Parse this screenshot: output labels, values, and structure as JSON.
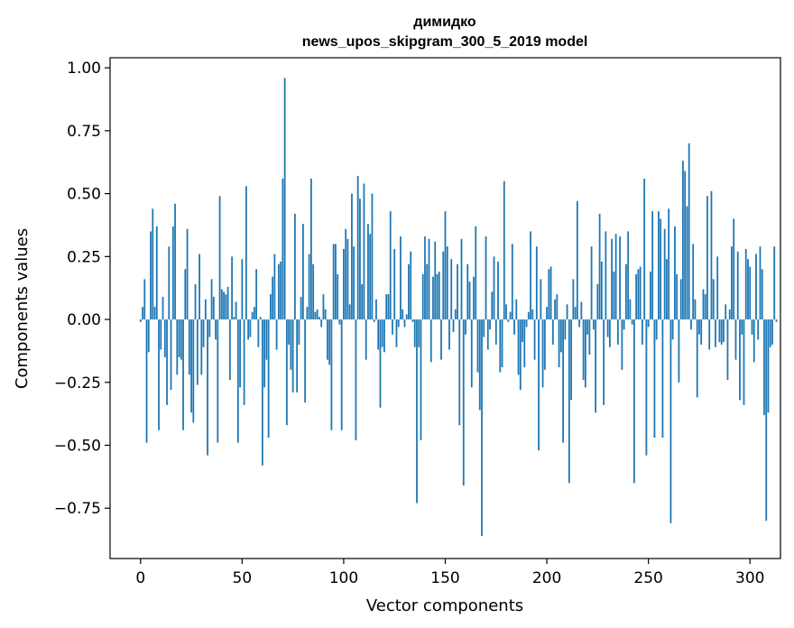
{
  "chart_data": {
    "type": "bar",
    "title": "димидко",
    "subtitle": "news_upos_skipgram_300_5_2019 model",
    "xlabel": "Vector components",
    "ylabel": "Components values",
    "xlim": [
      -15,
      315
    ],
    "ylim": [
      -0.95,
      1.04
    ],
    "xticks": [
      0,
      50,
      100,
      150,
      200,
      250,
      300
    ],
    "xtick_labels": [
      "0",
      "50",
      "100",
      "150",
      "200",
      "250",
      "300"
    ],
    "yticks": [
      1.0,
      0.75,
      0.5,
      0.25,
      0.0,
      -0.25,
      -0.5,
      -0.75
    ],
    "ytick_labels": [
      "1.00",
      "0.75",
      "0.50",
      "0.25",
      "0.00",
      "−0.25",
      "−0.50",
      "−0.75"
    ],
    "bar_color": "#1f77b4",
    "grid": false,
    "legend": false,
    "series": [
      {
        "values": [
          -0.01,
          0.05,
          0.16,
          -0.49,
          -0.13,
          0.35,
          0.44,
          0.05,
          0.37,
          -0.44,
          -0.12,
          0.09,
          -0.15,
          -0.34,
          0.29,
          -0.28,
          0.37,
          0.46,
          -0.22,
          -0.15,
          -0.16,
          -0.44,
          0.2,
          0.36,
          -0.22,
          -0.37,
          -0.41,
          0.14,
          -0.26,
          0.26,
          -0.22,
          -0.11,
          0.08,
          -0.54,
          -0.07,
          0.16,
          0.09,
          -0.08,
          -0.49,
          0.49,
          0.12,
          0.11,
          0.1,
          0.13,
          -0.24,
          0.25,
          0.01,
          0.07,
          -0.49,
          -0.27,
          0.24,
          -0.34,
          0.53,
          -0.08,
          -0.07,
          0.03,
          0.05,
          0.2,
          -0.11,
          0.01,
          -0.58,
          -0.27,
          -0.16,
          -0.47,
          0.1,
          0.17,
          0.26,
          -0.12,
          0.22,
          0.23,
          0.56,
          0.96,
          -0.42,
          -0.1,
          -0.2,
          -0.29,
          0.42,
          -0.29,
          -0.1,
          0.09,
          0.38,
          -0.33,
          0.05,
          0.26,
          0.56,
          0.22,
          0.03,
          0.04,
          0.01,
          -0.03,
          0.1,
          0.04,
          -0.16,
          -0.18,
          -0.44,
          0.3,
          0.3,
          0.18,
          -0.02,
          -0.44,
          0.28,
          0.36,
          0.32,
          0.06,
          0.5,
          0.29,
          -0.48,
          0.57,
          0.48,
          0.14,
          0.54,
          -0.16,
          0.38,
          0.34,
          0.5,
          -0.01,
          0.08,
          -0.12,
          -0.35,
          -0.11,
          -0.13,
          0.1,
          0.1,
          0.43,
          -0.06,
          0.28,
          -0.11,
          -0.03,
          0.33,
          0.04,
          -0.03,
          0.02,
          0.22,
          0.27,
          -0.01,
          -0.11,
          -0.73,
          -0.11,
          -0.48,
          0.18,
          0.33,
          0.22,
          0.32,
          -0.17,
          0.17,
          0.31,
          0.18,
          0.19,
          -0.16,
          0.27,
          0.43,
          0.29,
          -0.12,
          0.24,
          -0.05,
          0.04,
          0.22,
          -0.42,
          0.32,
          -0.66,
          -0.06,
          0.22,
          0.15,
          -0.27,
          0.17,
          0.37,
          -0.21,
          -0.36,
          -0.86,
          -0.07,
          0.33,
          -0.12,
          -0.04,
          0.11,
          0.25,
          -0.1,
          0.23,
          -0.21,
          -0.19,
          0.55,
          0.06,
          -0.01,
          0.03,
          0.3,
          -0.06,
          0.08,
          -0.22,
          -0.28,
          -0.09,
          -0.19,
          -0.03,
          0.03,
          0.35,
          0.04,
          -0.16,
          0.29,
          -0.52,
          0.16,
          -0.27,
          -0.2,
          0.05,
          0.2,
          0.21,
          -0.1,
          0.08,
          0.1,
          -0.19,
          -0.13,
          -0.49,
          -0.08,
          0.06,
          -0.65,
          -0.32,
          0.16,
          0.05,
          0.47,
          -0.03,
          0.07,
          -0.24,
          -0.27,
          -0.06,
          -0.14,
          0.29,
          -0.04,
          -0.37,
          0.14,
          0.42,
          0.23,
          -0.34,
          0.35,
          -0.07,
          -0.11,
          0.32,
          0.19,
          0.34,
          -0.1,
          0.33,
          -0.2,
          -0.04,
          0.22,
          0.35,
          0.08,
          -0.02,
          -0.65,
          0.18,
          0.2,
          0.21,
          -0.1,
          0.56,
          -0.54,
          -0.03,
          0.19,
          0.43,
          -0.47,
          -0.08,
          0.43,
          0.4,
          -0.47,
          0.36,
          0.24,
          0.44,
          -0.81,
          -0.08,
          0.37,
          0.18,
          -0.25,
          0.16,
          0.63,
          0.59,
          0.45,
          0.7,
          -0.04,
          0.3,
          0.08,
          -0.31,
          -0.06,
          -0.1,
          0.12,
          0.1,
          0.49,
          -0.12,
          0.51,
          0.16,
          -0.11,
          0.25,
          -0.09,
          -0.1,
          -0.09,
          0.06,
          -0.24,
          0.04,
          0.29,
          0.4,
          -0.16,
          0.27,
          -0.32,
          -0.06,
          -0.34,
          0.28,
          0.24,
          0.21,
          -0.06,
          -0.17,
          0.26,
          -0.08,
          0.29,
          0.2,
          -0.38,
          -0.8,
          -0.37,
          -0.11,
          -0.1,
          0.29,
          -0.01
        ]
      }
    ]
  }
}
